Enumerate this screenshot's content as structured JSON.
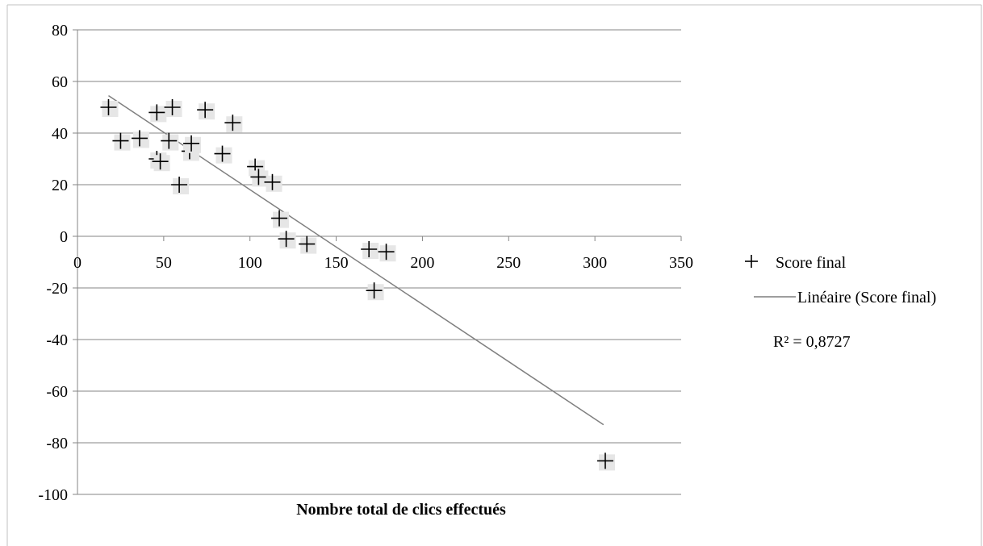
{
  "chart_data": {
    "type": "scatter",
    "title": "",
    "xlabel": "Nombre total de clics effectués",
    "ylabel": "",
    "xlim": [
      0,
      350
    ],
    "ylim": [
      -100,
      80
    ],
    "x_ticks": [
      "0",
      "50",
      "100",
      "150",
      "200",
      "250",
      "300",
      "350"
    ],
    "y_ticks": [
      "80",
      "60",
      "40",
      "20",
      "0",
      "-20",
      "-40",
      "-60",
      "-80",
      "-100"
    ],
    "grid": "horizontal",
    "legend_position": "right",
    "series": [
      {
        "name": "Score final",
        "marker": "plus",
        "color": "#000000",
        "points": [
          [
            18,
            50
          ],
          [
            25,
            37
          ],
          [
            36,
            38
          ],
          [
            46,
            48
          ],
          [
            46,
            30
          ],
          [
            48,
            29
          ],
          [
            53,
            37
          ],
          [
            55,
            50
          ],
          [
            59,
            20
          ],
          [
            65,
            33
          ],
          [
            66,
            36
          ],
          [
            74,
            49
          ],
          [
            84,
            32
          ],
          [
            90,
            44
          ],
          [
            103,
            27
          ],
          [
            105,
            23
          ],
          [
            113,
            21
          ],
          [
            117,
            7
          ],
          [
            121,
            -1
          ],
          [
            133,
            -3
          ],
          [
            169,
            -5
          ],
          [
            172,
            -21
          ],
          [
            179,
            -6
          ],
          [
            306,
            -87
          ]
        ]
      }
    ],
    "trendline": {
      "name": "Linéaire (Score final)",
      "type": "linear",
      "color": "#7f7f7f",
      "from": [
        18,
        54.5
      ],
      "to": [
        305,
        -73
      ],
      "r2_label": "R² = 0,8727"
    }
  }
}
